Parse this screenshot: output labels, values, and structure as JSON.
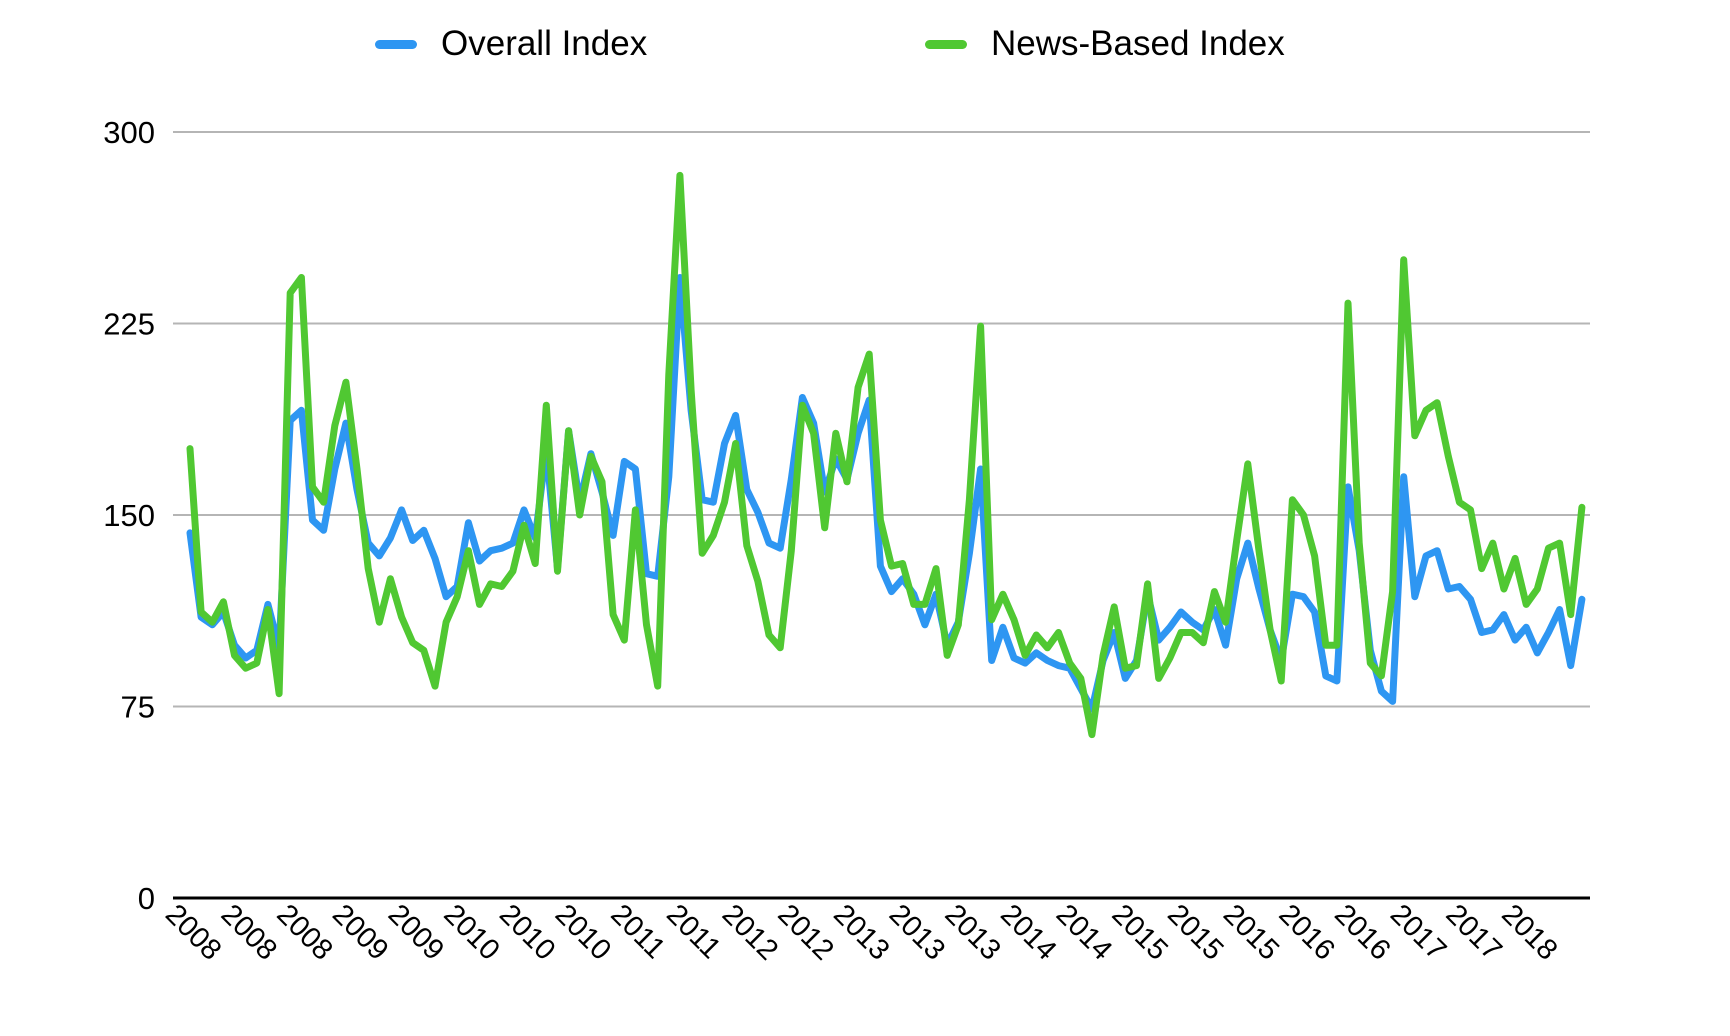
{
  "legend": {
    "overall_label": "Overall Index",
    "news_label": "News-Based Index"
  },
  "colors": {
    "overall": "#2e96f2",
    "news": "#50c832",
    "gridline": "#b5b5b5",
    "axis": "#000000"
  },
  "chart_data": {
    "type": "line",
    "title": "",
    "xlabel": "",
    "ylabel": "",
    "ylim": [
      0,
      300
    ],
    "yticks": [
      0,
      75,
      150,
      225,
      300
    ],
    "grid": "horizontal",
    "legend_position": "top",
    "x_unit": "month",
    "x_start": "2008-01",
    "x_tick_every_n_months": 5,
    "x_tick_labels": [
      "2008",
      "2008",
      "2008",
      "2009",
      "2009",
      "2010",
      "2010",
      "2010",
      "2011",
      "2011",
      "2012",
      "2012",
      "2013",
      "2013",
      "2013",
      "2014",
      "2014",
      "2015",
      "2015",
      "2015",
      "2016",
      "2016",
      "2017",
      "2017",
      "2018"
    ],
    "series": [
      {
        "name": "Overall Index",
        "color": "#2e96f2",
        "values": [
          143,
          110,
          107,
          112,
          99,
          94,
          97,
          115,
          98,
          187,
          191,
          148,
          144,
          168,
          186,
          160,
          139,
          134,
          141,
          152,
          140,
          144,
          133,
          118,
          122,
          147,
          132,
          136,
          137,
          139,
          152,
          141,
          176,
          129,
          183,
          155,
          174,
          159,
          142,
          171,
          168,
          127,
          126,
          165,
          243,
          191,
          156,
          155,
          178,
          189,
          160,
          151,
          139,
          137,
          164,
          196,
          186,
          159,
          172,
          164,
          182,
          195,
          130,
          120,
          125,
          119,
          107,
          119,
          99,
          108,
          135,
          168,
          93,
          106,
          94,
          92,
          96,
          93,
          91,
          90,
          82,
          74,
          93,
          104,
          86,
          93,
          119,
          101,
          106,
          112,
          108,
          105,
          113,
          99,
          125,
          139,
          121,
          105,
          93,
          119,
          118,
          112,
          87,
          85,
          161,
          136,
          97,
          81,
          77,
          165,
          118,
          134,
          136,
          121,
          122,
          117,
          104,
          105,
          111,
          101,
          106,
          96,
          104,
          113,
          91,
          117
        ]
      },
      {
        "name": "News-Based Index",
        "color": "#50c832",
        "values": [
          176,
          112,
          108,
          116,
          95,
          90,
          92,
          113,
          80,
          237,
          243,
          161,
          155,
          185,
          202,
          168,
          129,
          108,
          125,
          110,
          100,
          97,
          83,
          108,
          118,
          136,
          115,
          123,
          122,
          128,
          146,
          131,
          193,
          128,
          183,
          150,
          173,
          163,
          111,
          101,
          152,
          107,
          83,
          205,
          283,
          199,
          135,
          142,
          155,
          178,
          138,
          124,
          103,
          98,
          136,
          193,
          182,
          145,
          182,
          163,
          200,
          213,
          148,
          130,
          131,
          115,
          115,
          129,
          95,
          107,
          156,
          224,
          109,
          119,
          109,
          95,
          103,
          98,
          104,
          92,
          86,
          64,
          95,
          114,
          90,
          91,
          123,
          86,
          94,
          104,
          104,
          100,
          120,
          108,
          140,
          170,
          136,
          105,
          85,
          156,
          150,
          134,
          99,
          99,
          233,
          139,
          92,
          87,
          120,
          250,
          181,
          191,
          194,
          173,
          155,
          152,
          129,
          139,
          121,
          133,
          115,
          121,
          137,
          139,
          111,
          153
        ]
      }
    ]
  }
}
